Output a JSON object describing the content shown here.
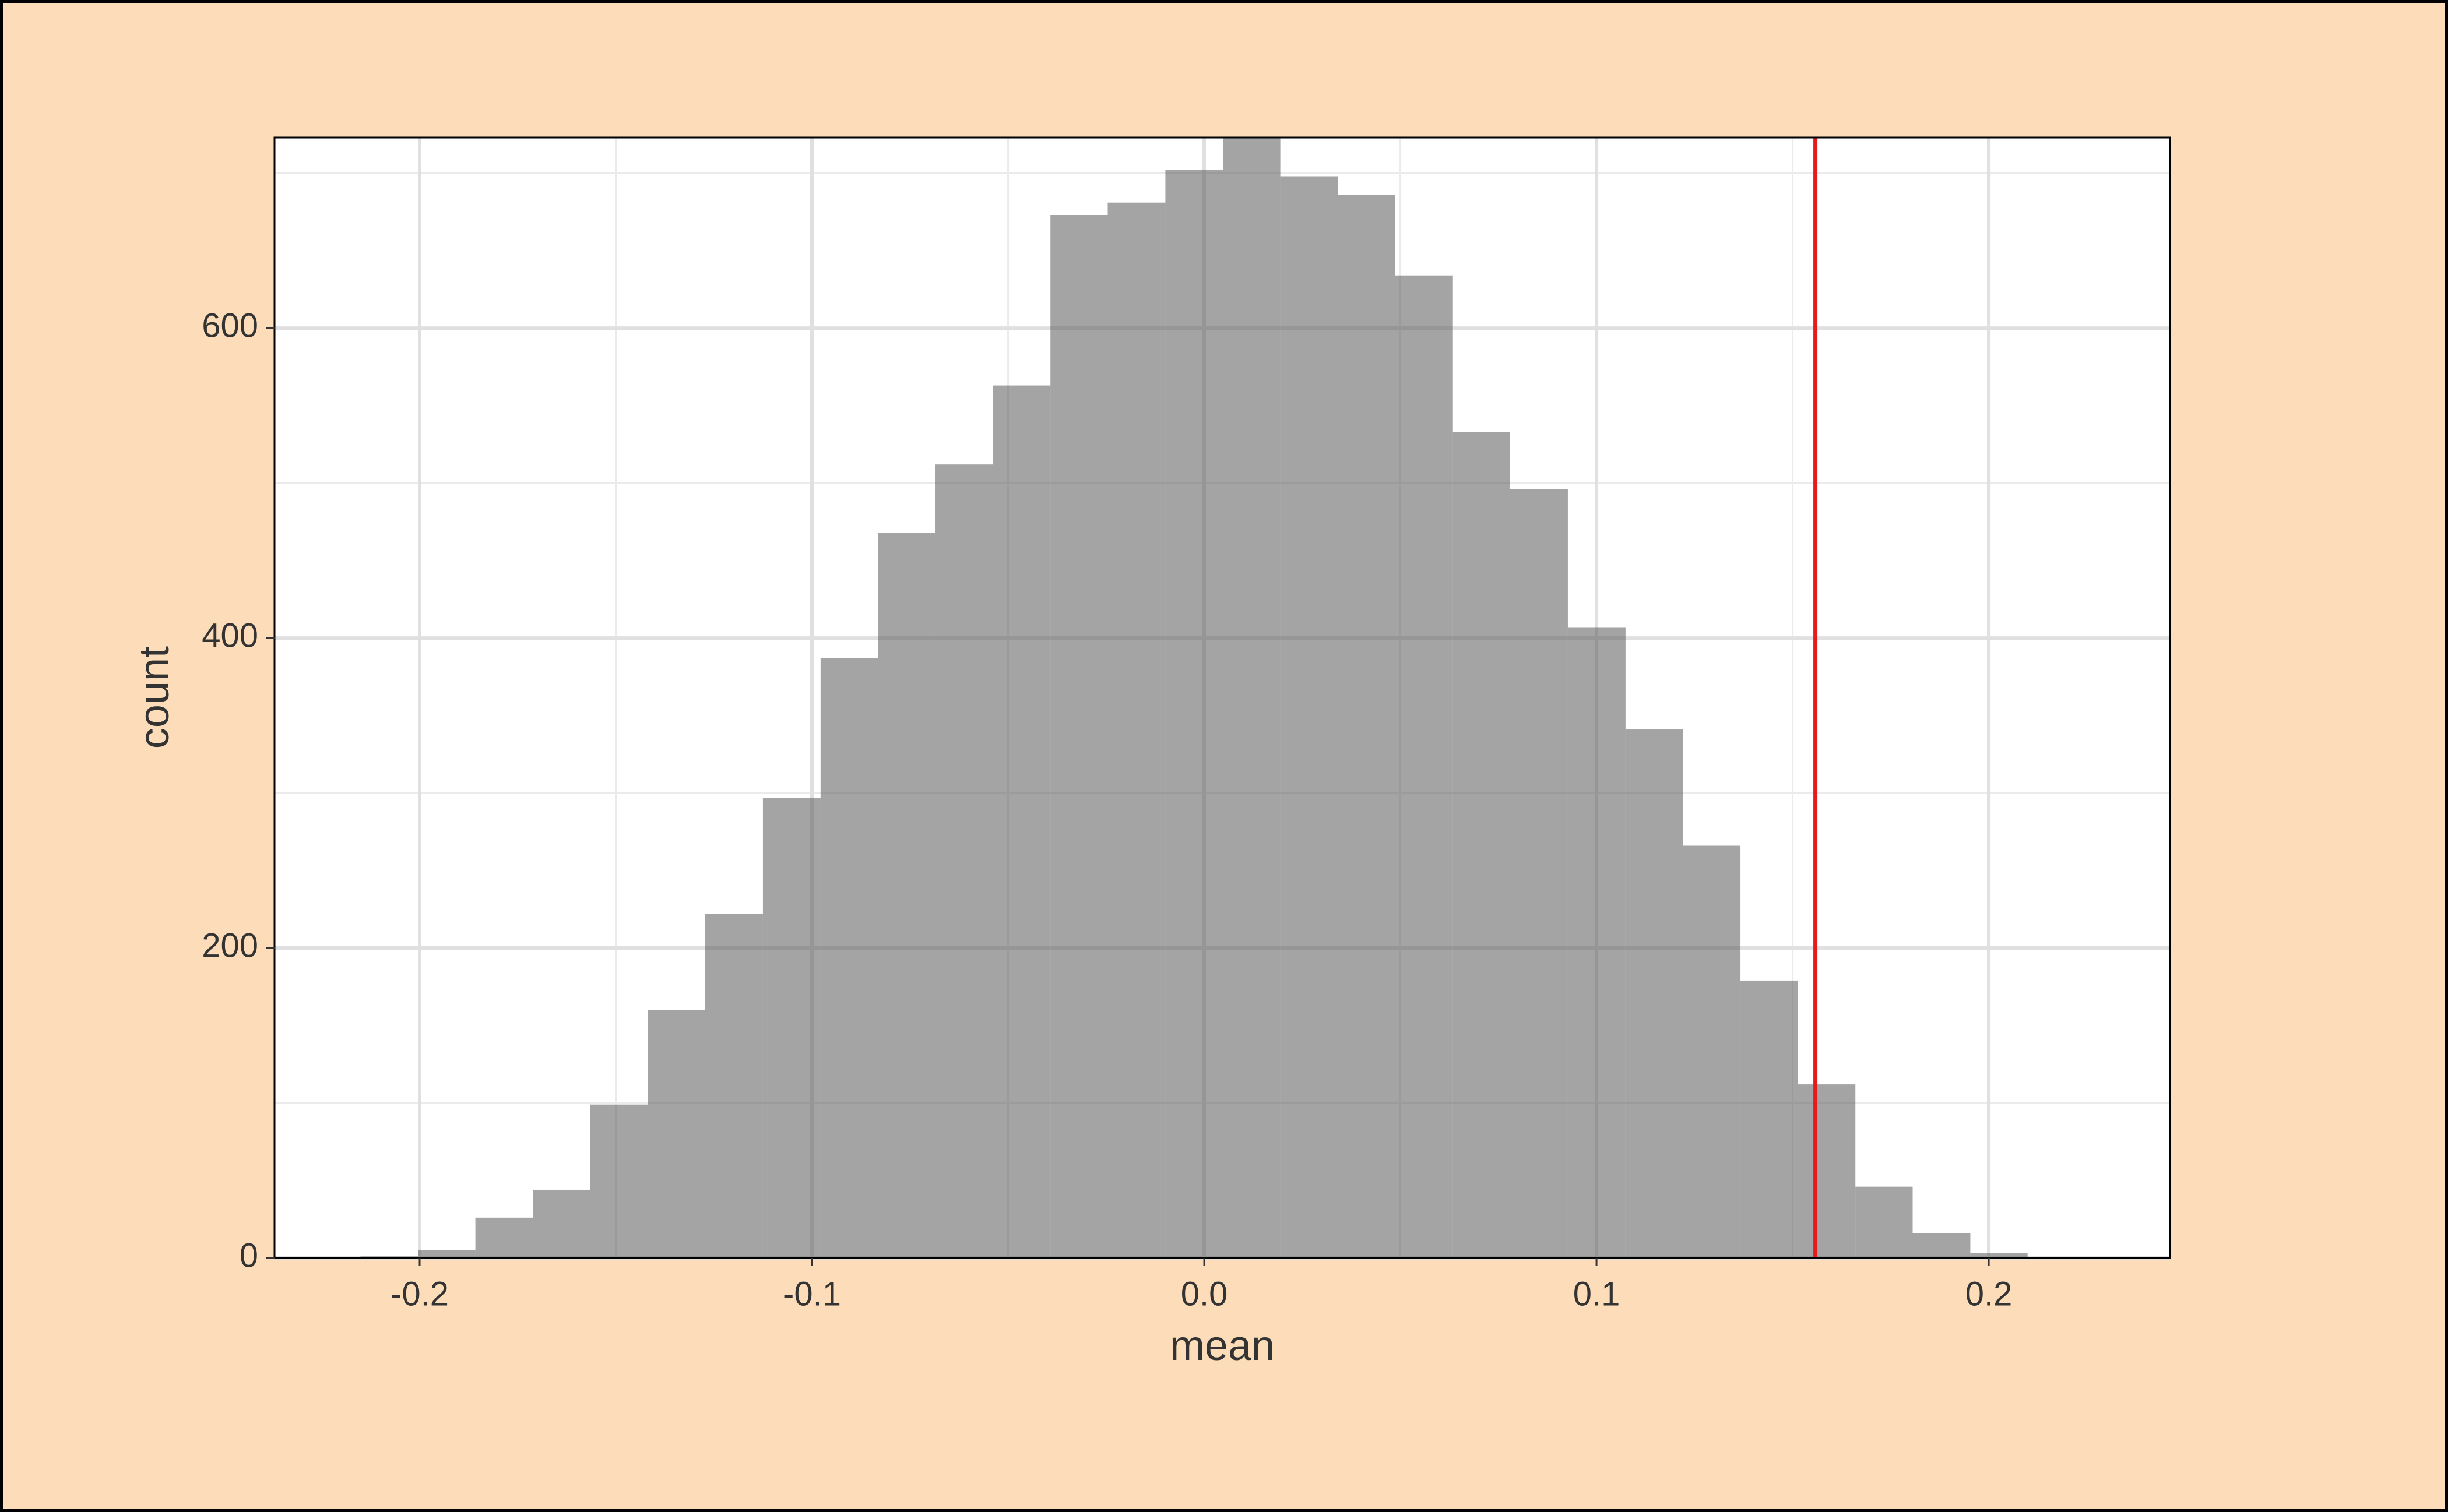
{
  "chart_data": {
    "type": "histogram",
    "x_label": "mean",
    "y_label": "count",
    "bins": [
      -0.2151,
      -0.2004,
      -0.1858,
      -0.1711,
      -0.1565,
      -0.1418,
      -0.1272,
      -0.1125,
      -0.0978,
      -0.0832,
      -0.0685,
      -0.0539,
      -0.0392,
      -0.0246,
      -0.0099,
      0.0048,
      0.0194,
      0.0341,
      0.0487,
      0.0634,
      0.078,
      0.0927,
      0.1074,
      0.122,
      0.1367,
      0.1513,
      0.166,
      0.1806,
      0.1953,
      0.2099
    ],
    "values": [
      1,
      5,
      26,
      44,
      99,
      160,
      222,
      297,
      387,
      468,
      512,
      563,
      673,
      681,
      702,
      723,
      698,
      686,
      634,
      533,
      496,
      407,
      341,
      266,
      179,
      112,
      46,
      16,
      3
    ],
    "color": "#595959",
    "xlim": [
      -0.237,
      0.2462
    ],
    "ylim": [
      0,
      723
    ],
    "xticks": [
      -0.2,
      -0.1,
      {
        "value": 0,
        "label": "0.0"
      },
      0.1,
      0.2
    ],
    "yticks": [
      0,
      200,
      400,
      600
    ],
    "x_minor_grid": [
      -0.15,
      -0.05,
      0.05,
      0.15
    ],
    "y_minor_grid": [
      100,
      300,
      500,
      700
    ],
    "grid": true,
    "vline": {
      "value": 0.1558,
      "color": "#e41a1c"
    }
  }
}
